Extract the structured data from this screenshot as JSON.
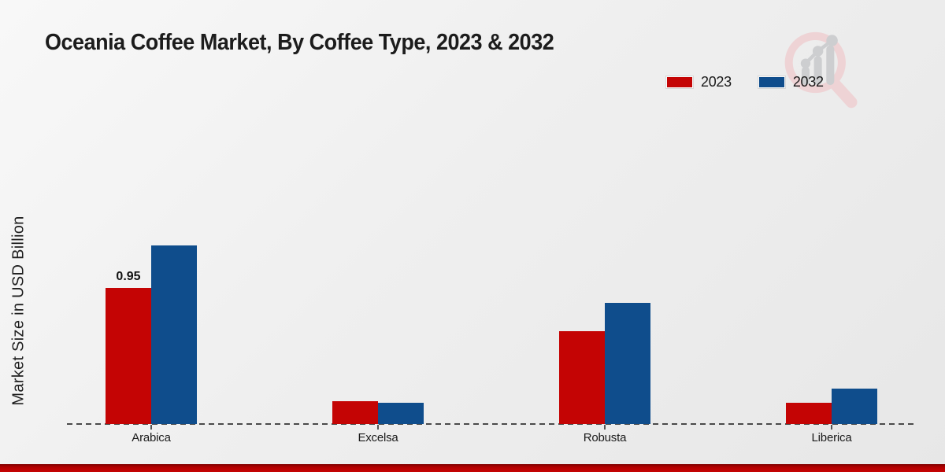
{
  "chart_data": {
    "type": "bar",
    "title": "Oceania Coffee Market, By Coffee Type, 2023 & 2032",
    "ylabel": "Market Size in USD Billion",
    "xlabel": "",
    "categories": [
      "Arabica",
      "Excelsa",
      "Robusta",
      "Liberica"
    ],
    "series": [
      {
        "name": "2023",
        "color": "#c40404",
        "values": [
          0.95,
          0.16,
          0.65,
          0.15
        ]
      },
      {
        "name": "2032",
        "color": "#0f4d8c",
        "values": [
          1.25,
          0.15,
          0.85,
          0.25
        ]
      }
    ],
    "ylim": [
      0,
      1.35
    ],
    "grid": false,
    "legend_position": "top-right",
    "bar_labels": [
      {
        "series": "2023",
        "category": "Arabica",
        "text": "0.95"
      }
    ],
    "axis_line_color": "#4a4a4a"
  },
  "footer": {
    "stripe_color": "#c00000"
  },
  "watermark": {
    "icon": "magnifier-growth-chart-logo"
  },
  "background": {
    "top_left": "#f8f8f8",
    "bottom_right": "#e7e7e7"
  }
}
